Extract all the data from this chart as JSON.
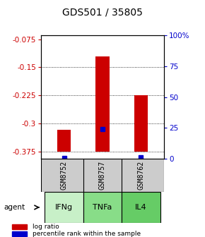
{
  "title": "GDS501 / 35805",
  "samples": [
    "GSM8752",
    "GSM8757",
    "GSM8762"
  ],
  "agents": [
    "IFNg",
    "TNFa",
    "IL4"
  ],
  "log_ratios": [
    -0.318,
    -0.12,
    -0.225
  ],
  "percentile_ranks": [
    0.5,
    24.0,
    1.0
  ],
  "bar_bottom": -0.375,
  "ylim_left": [
    -0.395,
    -0.065
  ],
  "yticks_left": [
    -0.375,
    -0.3,
    -0.225,
    -0.15,
    -0.075
  ],
  "yticks_right": [
    0,
    25,
    50,
    75,
    100
  ],
  "left_color": "#cc0000",
  "right_color": "#0000cc",
  "bar_color": "#cc0000",
  "blue_marker_color": "#0000cc",
  "sample_box_color": "#cccccc",
  "agent_colors": [
    "#c8f0c8",
    "#88dd88",
    "#66cc66"
  ],
  "legend_red": "log ratio",
  "legend_blue": "percentile rank within the sample"
}
